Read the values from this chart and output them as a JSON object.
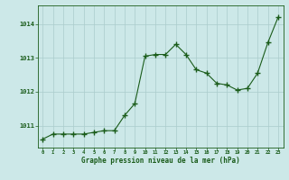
{
  "x": [
    0,
    1,
    2,
    3,
    4,
    5,
    6,
    7,
    8,
    9,
    10,
    11,
    12,
    13,
    14,
    15,
    16,
    17,
    18,
    19,
    20,
    21,
    22,
    23
  ],
  "y": [
    1010.6,
    1010.75,
    1010.75,
    1010.75,
    1010.75,
    1010.8,
    1010.85,
    1010.85,
    1011.3,
    1011.65,
    1013.05,
    1013.1,
    1013.1,
    1013.4,
    1013.1,
    1012.65,
    1012.55,
    1012.25,
    1012.2,
    1012.05,
    1012.1,
    1012.55,
    1013.45,
    1014.2
  ],
  "line_color": "#1a5c1a",
  "marker_color": "#1a5c1a",
  "bg_color": "#cce8e8",
  "grid_color": "#aacccc",
  "xlabel": "Graphe pression niveau de la mer (hPa)",
  "xlabel_color": "#1a5c1a",
  "tick_color": "#1a5c1a",
  "ylabel_values": [
    1011,
    1012,
    1013,
    1014
  ],
  "ylim": [
    1010.35,
    1014.55
  ],
  "xlim": [
    -0.5,
    23.5
  ]
}
